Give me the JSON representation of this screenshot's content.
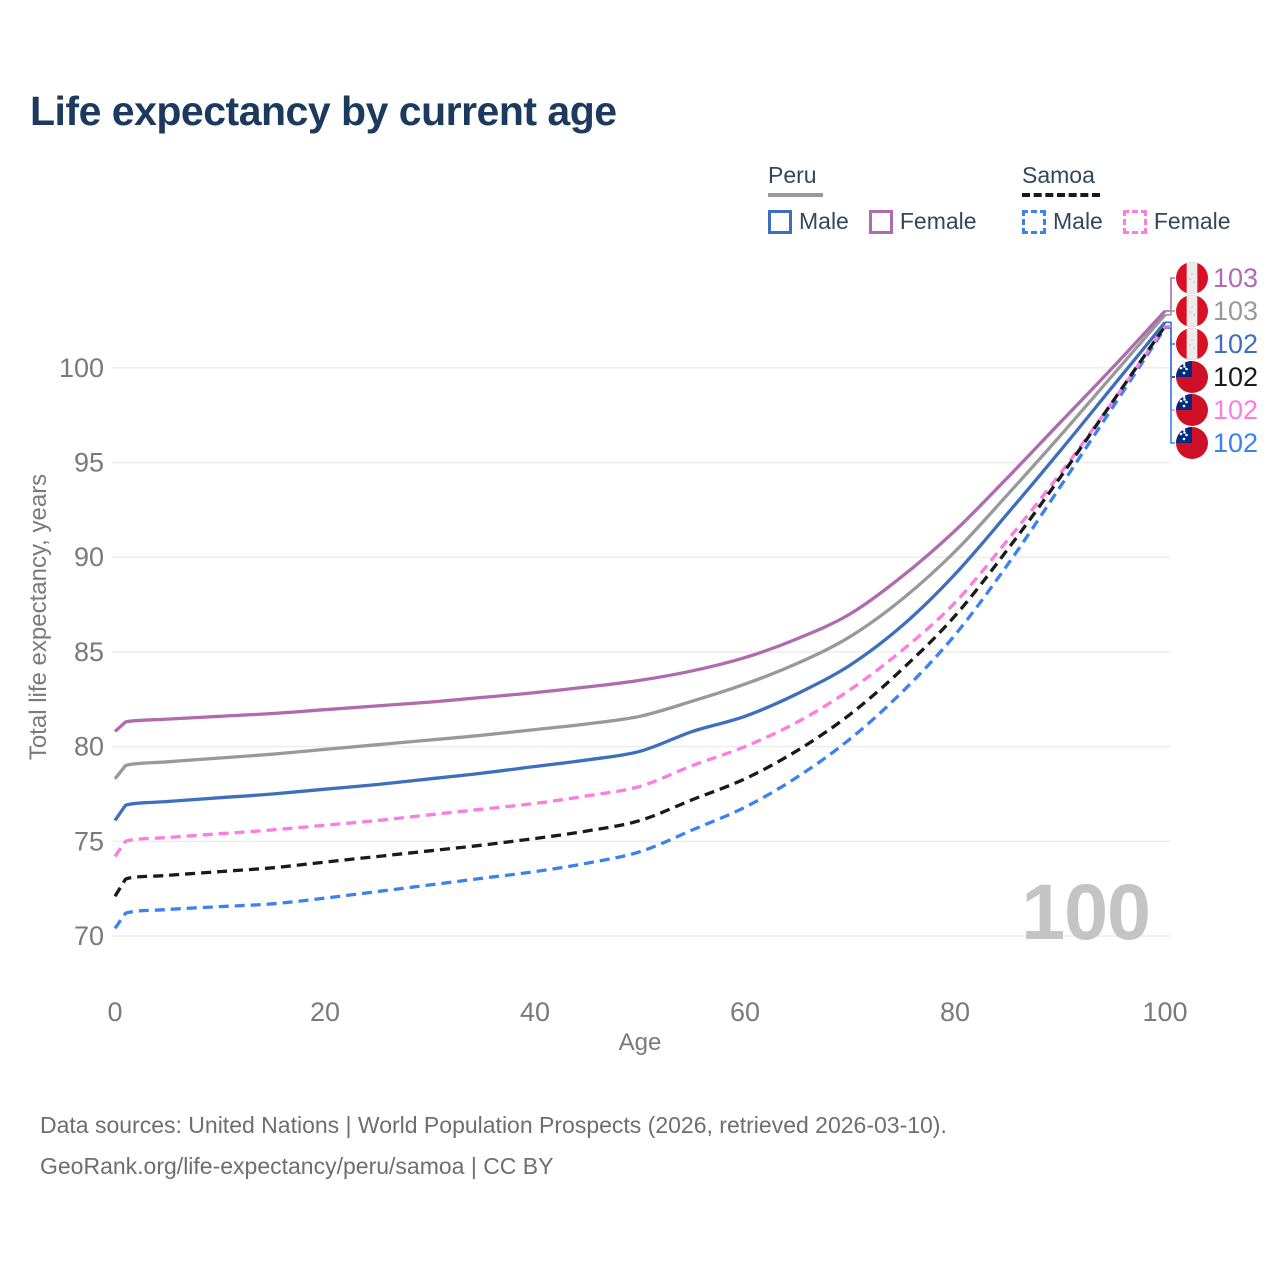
{
  "title": "Life expectancy by current age",
  "legend": {
    "groups": [
      {
        "label": "Peru",
        "line_style": "solid",
        "line_color": "#999999",
        "items": [
          {
            "label": "Male",
            "color": "#3e6fbd",
            "dash": false
          },
          {
            "label": "Female",
            "color": "#b06ab0",
            "dash": false
          }
        ]
      },
      {
        "label": "Samoa",
        "line_style": "dashed",
        "line_color": "#1a1a1a",
        "items": [
          {
            "label": "Male",
            "color": "#3b82f0",
            "dash": true
          },
          {
            "label": "Female",
            "color": "#fc7ce0",
            "dash": true
          }
        ]
      }
    ]
  },
  "watermark": "100",
  "footer": {
    "line1": "Data sources: United Nations | World Population Prospects (2026, retrieved 2026-03-10).",
    "line2": "GeoRank.org/life-expectancy/peru/samoa | CC BY"
  },
  "chart_data": {
    "type": "line",
    "title": "Life expectancy by current age",
    "xlabel": "Age",
    "ylabel": "Total life expectancy, years",
    "x_ticks": [
      0,
      20,
      40,
      60,
      80,
      100
    ],
    "y_ticks": [
      70,
      75,
      80,
      85,
      90,
      95,
      100
    ],
    "xlim": [
      0,
      100
    ],
    "ylim": [
      70,
      103
    ],
    "grid": "horizontal",
    "legend_position": "top-right",
    "ages": [
      0,
      1,
      5,
      10,
      15,
      20,
      25,
      30,
      35,
      40,
      45,
      50,
      55,
      60,
      65,
      70,
      75,
      80,
      85,
      90,
      95,
      100
    ],
    "series": [
      {
        "name": "Peru Female",
        "country": "Peru",
        "sex": "Female",
        "color": "#b06ab0",
        "dash": false,
        "flag": "peru",
        "end_label": "103",
        "values": [
          80.8,
          81.3,
          81.45,
          81.6,
          81.75,
          81.95,
          82.15,
          82.35,
          82.6,
          82.85,
          83.15,
          83.5,
          84.0,
          84.7,
          85.7,
          87.0,
          89.0,
          91.4,
          94.2,
          97.1,
          100.0,
          103.0
        ]
      },
      {
        "name": "Peru Both sexes",
        "country": "Peru",
        "sex": "Both",
        "color": "#999999",
        "dash": false,
        "flag": "peru",
        "end_label": "103",
        "values": [
          78.3,
          79.0,
          79.2,
          79.4,
          79.6,
          79.85,
          80.1,
          80.35,
          80.6,
          80.9,
          81.2,
          81.6,
          82.4,
          83.3,
          84.4,
          85.8,
          87.8,
          90.3,
          93.3,
          96.4,
          99.6,
          102.8
        ]
      },
      {
        "name": "Peru Male",
        "country": "Peru",
        "sex": "Male",
        "color": "#3e6fbd",
        "dash": false,
        "flag": "peru",
        "end_label": "102",
        "values": [
          76.1,
          76.9,
          77.1,
          77.3,
          77.5,
          77.75,
          78.0,
          78.3,
          78.6,
          78.95,
          79.3,
          79.75,
          80.8,
          81.6,
          82.8,
          84.3,
          86.4,
          89.1,
          92.3,
          95.6,
          99.0,
          102.4
        ]
      },
      {
        "name": "Samoa Both sexes",
        "country": "Samoa",
        "sex": "Both",
        "color": "#1a1a1a",
        "dash": true,
        "flag": "samoa",
        "end_label": "102",
        "values": [
          72.1,
          73.0,
          73.2,
          73.4,
          73.6,
          73.9,
          74.2,
          74.5,
          74.8,
          75.15,
          75.55,
          76.1,
          77.2,
          78.3,
          79.8,
          81.7,
          84.1,
          86.9,
          90.4,
          94.2,
          98.2,
          102.2
        ]
      },
      {
        "name": "Samoa Female",
        "country": "Samoa",
        "sex": "Female",
        "color": "#fc7ce0",
        "dash": true,
        "flag": "samoa",
        "end_label": "102",
        "values": [
          74.2,
          75.0,
          75.2,
          75.4,
          75.6,
          75.85,
          76.1,
          76.4,
          76.7,
          77.0,
          77.4,
          77.9,
          79.0,
          80.0,
          81.3,
          83.0,
          85.1,
          87.6,
          90.9,
          94.4,
          98.2,
          102.2
        ]
      },
      {
        "name": "Samoa Male",
        "country": "Samoa",
        "sex": "Male",
        "color": "#3b82f0",
        "dash": true,
        "flag": "samoa",
        "end_label": "102",
        "values": [
          70.4,
          71.2,
          71.4,
          71.55,
          71.7,
          72.0,
          72.35,
          72.7,
          73.05,
          73.4,
          73.85,
          74.45,
          75.6,
          76.8,
          78.4,
          80.4,
          82.9,
          85.9,
          89.6,
          93.7,
          97.9,
          102.1
        ]
      }
    ]
  }
}
